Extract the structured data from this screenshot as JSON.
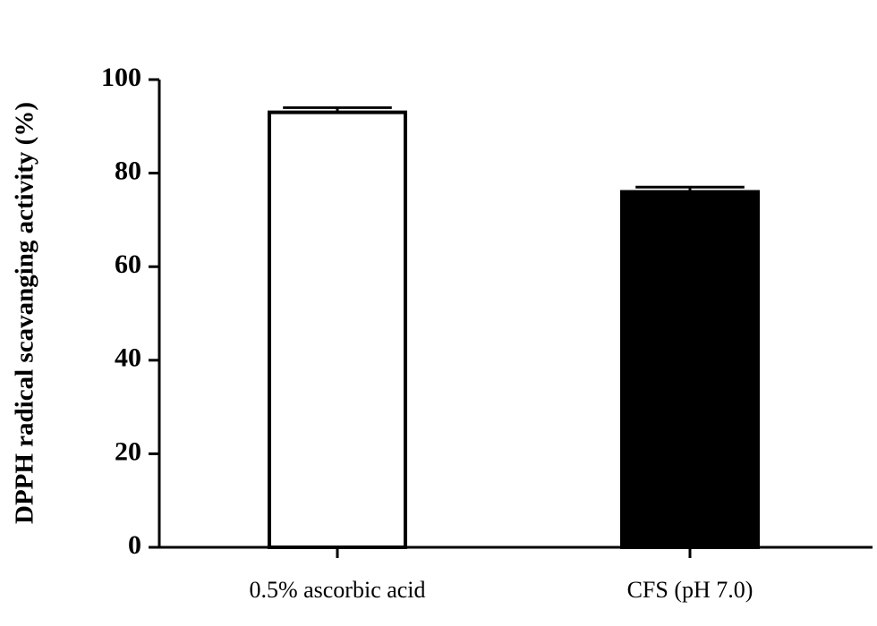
{
  "chart_data": {
    "type": "bar",
    "y_label": "DPPH radical scavanging activity (%)",
    "categories": [
      "0.5% ascorbic acid",
      "CFS (pH 7.0)"
    ],
    "values": [
      93,
      76
    ],
    "errors": [
      1,
      1
    ],
    "colors": [
      "#ffffff",
      "#000000"
    ],
    "edge_color": "#000000",
    "ylim": [
      0,
      100
    ],
    "yticks": [
      0,
      20,
      40,
      60,
      80,
      100
    ],
    "grid": false
  }
}
